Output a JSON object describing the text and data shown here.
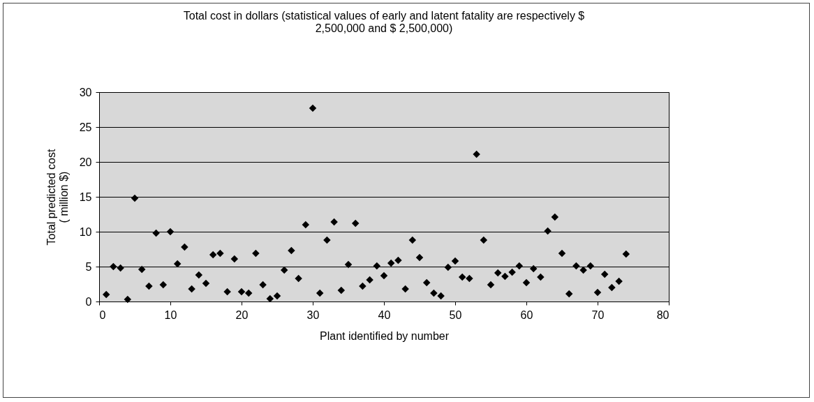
{
  "chart_data": {
    "type": "scatter",
    "title": "Total cost in dollars (statistical values of early and latent fatality are respectively $ 2,500,000 and $ 2,500,000)",
    "xlabel": "Plant identified by number",
    "ylabel": "Total predicted cost ( million $)",
    "x": [
      1,
      2,
      3,
      4,
      5,
      6,
      7,
      8,
      9,
      10,
      11,
      12,
      13,
      14,
      15,
      16,
      17,
      18,
      19,
      20,
      21,
      22,
      23,
      24,
      25,
      26,
      27,
      28,
      29,
      30,
      31,
      32,
      33,
      34,
      35,
      36,
      37,
      38,
      39,
      40,
      41,
      42,
      43,
      44,
      45,
      46,
      47,
      48,
      49,
      50,
      51,
      52,
      53,
      54,
      55,
      56,
      57,
      58,
      59,
      60,
      61,
      62,
      63,
      64,
      65,
      66,
      67,
      68,
      69,
      70,
      71,
      72,
      73,
      74
    ],
    "series": [
      {
        "color": "#000000",
        "values": [
          1.0,
          5.0,
          4.8,
          0.3,
          14.8,
          4.6,
          2.2,
          9.8,
          2.4,
          10.0,
          5.4,
          7.8,
          1.8,
          3.8,
          2.6,
          6.7,
          6.9,
          1.4,
          6.1,
          1.4,
          1.2,
          6.9,
          2.4,
          0.4,
          0.8,
          4.5,
          7.3,
          3.3,
          11.0,
          27.7,
          1.2,
          8.8,
          11.4,
          1.6,
          5.3,
          11.2,
          2.2,
          3.1,
          5.1,
          3.7,
          5.5,
          5.9,
          1.8,
          8.8,
          6.3,
          2.7,
          1.2,
          0.8,
          4.9,
          5.8,
          3.5,
          3.3,
          21.1,
          8.8,
          2.4,
          4.1,
          3.6,
          4.2,
          5.1,
          2.7,
          4.7,
          3.5,
          10.1,
          12.1,
          6.9,
          1.1,
          5.1,
          4.5,
          5.1,
          1.3,
          3.9,
          2.0,
          2.9,
          6.8
        ]
      }
    ],
    "xlim": [
      0,
      80
    ],
    "xticks": [
      0,
      10,
      20,
      30,
      40,
      50,
      60,
      70,
      80
    ],
    "ylim": [
      0,
      30
    ],
    "yticks": [
      0,
      5,
      10,
      15,
      20,
      25,
      30
    ],
    "grid": "y",
    "marker": "diamond"
  }
}
